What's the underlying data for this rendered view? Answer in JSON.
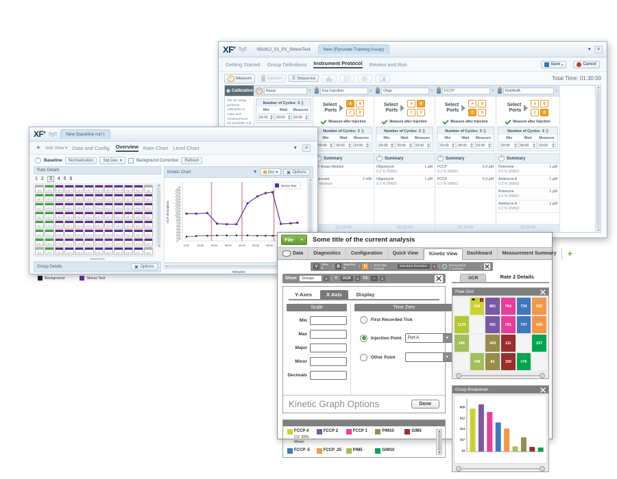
{
  "icons": {
    "close": "✕",
    "filter": "▼",
    "dropdown": "▾",
    "plus": "+",
    "caret": "^",
    "globe": "⊕",
    "hbars": "☰"
  },
  "w1": {
    "logo": "XF",
    "logo_sup": "e",
    "doc_tabs": [
      "091812_01_P1_StressTest",
      "New (Pyruvate Training Assay)"
    ],
    "nav_tabs": [
      "Getting Started",
      "Group Definitions",
      "Instrument Protocol",
      "Review and Run"
    ],
    "save": "Save",
    "cancel": "Cancel",
    "toolbar": {
      "measure": "Measure",
      "injection": "Injection",
      "sequence": "Sequence"
    },
    "total_time": "Total Time:  01:30:00",
    "calibration": {
      "title": "Calibration",
      "desc": "The XF assay performs calibration to make sure measurements are accurate. It is configured in the Instrument Settings.",
      "equilibrate": "Equilibrate"
    },
    "cycles_label": "Number of Cycles:",
    "cycles_value": "3",
    "mix_label": "Mix",
    "wait_label": "Wait",
    "measure_label": "Measure",
    "select_ports_1": "Select",
    "select_ports_2": "Ports",
    "measure_after": "Measure after Injection",
    "summary_label": "Summary",
    "footer_time": "00:18:00",
    "ports": [
      "A",
      "B",
      "C",
      "D"
    ],
    "columns": [
      {
        "name": "Basal",
        "type": "measure",
        "mix": "03:00",
        "wait": "00:00",
        "measure": "03:00",
        "summary": []
      },
      {
        "name": "Exp Injection",
        "type": "injection",
        "port": "A",
        "mix": "03:00",
        "wait": "00:00",
        "measure": "03:00",
        "summary": [
          {
            "n": "XF Assay Medium",
            "v": "",
            "s": "%"
          },
          {
            "n": "Pyruvate",
            "v": "2 mM",
            "s": "% Medium"
          }
        ]
      },
      {
        "name": "Oligo",
        "type": "injection",
        "port": "B",
        "mix": "03:00",
        "wait": "00:00",
        "measure": "03:00",
        "summary": [
          {
            "n": "Oligomycin",
            "v": "1 µM",
            "s": "0.2 % DMSO"
          },
          {
            "n": "Oligomycin",
            "v": "1 µM",
            "s": "0.2 % DMSO"
          }
        ]
      },
      {
        "name": "FCCP",
        "type": "injection",
        "port": "C",
        "mix": "03:00",
        "wait": "00:00",
        "measure": "03:00",
        "summary": [
          {
            "n": "FCCP",
            "v": "0.3 µM",
            "s": "0.2 % DMSO"
          },
          {
            "n": "FCCP",
            "v": "0.3 µM",
            "s": "0.2 % DMSO"
          }
        ]
      },
      {
        "name": "Rot/AntA",
        "type": "injection",
        "port": "D",
        "mix": "03:00",
        "wait": "00:00",
        "measure": "03:00",
        "summary": [
          {
            "n": "Rotenone",
            "v": "1 µM",
            "s": "0.2 % DMSO"
          },
          {
            "n": "Antimycin A",
            "v": "1 µM",
            "s": "0.2 % DMSO"
          },
          {
            "n": "Rotenone",
            "v": "1 µM",
            "s": "0.2 % DMSO"
          },
          {
            "n": "Antimycin A",
            "v": "1 µM",
            "s": "0.2 % DMSO"
          }
        ]
      }
    ]
  },
  "w2": {
    "logo": "XF",
    "logo_sup": "e",
    "doc_tab": "New (baseline run )",
    "add_view": "Add View",
    "nav_tabs": [
      "Data and Config.",
      "Overview",
      "Rate Chart",
      "Level Chart"
    ],
    "toolbar": {
      "baseline": "Baseline",
      "normalization": "Normalization",
      "stddev": "Std Dev.",
      "background": "Background Correction",
      "refresh": "Refresh"
    },
    "rate_details": {
      "title": "Rate Details",
      "pages": [
        "1",
        "2",
        "3",
        "4",
        "5",
        "6"
      ],
      "active_page": "3",
      "green_color": "#3aa53f",
      "purple_color": "#5f2d91",
      "na_color": "#b0b0b0",
      "rows": [
        [
          "N/A",
          "136.1",
          "136.3",
          "136.3",
          "136.2",
          "136.3",
          "136.3",
          "136.2",
          "136.3",
          "136.3",
          "136.1",
          "N/A"
        ],
        [
          "135.2",
          "135.1",
          "134.3",
          "134.3",
          "134.2",
          "134.3",
          "134.3",
          "134.2",
          "134.3",
          "134.3",
          "134.2",
          "134.1"
        ],
        [
          "134.1",
          "134.2",
          "133.3",
          "133.2",
          "133.3",
          "133.3",
          "133.2",
          "133.3",
          "133.2",
          "133.3",
          "133.2",
          "133.1"
        ],
        [
          "133.2",
          "133.1",
          "132.3",
          "132.3",
          "132.2",
          "132.3",
          "132.3",
          "132.2",
          "132.3",
          "132.2",
          "132.3",
          "132.1"
        ],
        [
          "132.1",
          "132.2",
          "131.3",
          "131.2",
          "131.3",
          "131.2",
          "131.3",
          "131.3",
          "131.2",
          "131.3",
          "131.2",
          "131.1"
        ],
        [
          "131.2",
          "131.1",
          "130.3",
          "130.3",
          "130.2",
          "130.3",
          "130.2",
          "130.3",
          "130.3",
          "130.2",
          "130.3",
          "130.1"
        ],
        [
          "130.1",
          "130.2",
          "129.3",
          "129.2",
          "129.3",
          "129.3",
          "129.2",
          "129.3",
          "129.2",
          "129.3",
          "129.2",
          "129.1"
        ],
        [
          "N/A",
          "129.1",
          "128.3",
          "128.3",
          "128.2",
          "128.3",
          "128.3",
          "128.2",
          "128.3",
          "128.3",
          "128.1",
          "N/A"
        ]
      ]
    },
    "kinetic": {
      "title": "Kinetic Chart",
      "dropdown": "Ocr",
      "options": "Options"
    },
    "group_details": {
      "title": "Group Details",
      "options": "Options",
      "legend": [
        {
          "label": "Background",
          "color": "#1a1a1a"
        },
        {
          "label": "Stress Test",
          "color": "#5f2d91"
        }
      ]
    }
  },
  "w3": {
    "file_menu": "File",
    "title": "Some title of the current analysis",
    "tabs": [
      "Data",
      "Diagnostics",
      "Configuration",
      "Quick View",
      "Kinetic View",
      "Dashboard",
      "Measurement Summary"
    ],
    "active_tab": "Kinetic View",
    "view_bar": {
      "v": "V",
      "view": "View",
      "b": "B",
      "baseline": "Baseline",
      "n": "N",
      "error_label": "Error Bar Format",
      "error_value": "Standard Deviation",
      "background": "Background Correction"
    },
    "show_bar": {
      "show_label": "Show:",
      "show_value": "Groups",
      "y_label": "Y:",
      "y_value": "OCR",
      "y2_label": "Y2:",
      "y2_value": "--"
    },
    "options_panel": {
      "tabs": [
        "Y-Axes",
        "X Axis",
        "Display"
      ],
      "active_tab": "X Axis",
      "scale_title": "Scale",
      "scale_fields": [
        "Min",
        "Max",
        "Major",
        "Minor",
        "Decimals"
      ],
      "time_zero_title": "Time Zero",
      "radios": [
        {
          "label": "First Recorded Tick",
          "selected": false,
          "dropdown": null
        },
        {
          "label": "Injection Point",
          "selected": true,
          "dropdown": "Port A"
        },
        {
          "label": "Other Point",
          "selected": false,
          "dropdown": ""
        }
      ],
      "footer_title": "Kinetic Graph Options",
      "done": "Done"
    },
    "legend_items": [
      {
        "label": "FCCP 4",
        "color": "#ccd12e",
        "sub": [
          "CV: 20%",
          "Mean:"
        ]
      },
      {
        "label": "FCCP 2",
        "color": "#7a58a5",
        "sub": []
      },
      {
        "label": "FCCP 1",
        "color": "#e63e9a",
        "sub": []
      },
      {
        "label": "P/M10",
        "color": "#978c4a",
        "sub": []
      },
      {
        "label": "G/M5",
        "color": "#9b2d2d",
        "sub": []
      },
      {
        "label": "FCCP .5",
        "color": "#3f78bf",
        "sub": []
      },
      {
        "label": "FCCP .25",
        "color": "#f79646",
        "sub": []
      },
      {
        "label": "P/M5",
        "color": "#a2bf5a",
        "sub": []
      },
      {
        "label": "G/M10",
        "color": "#00a550",
        "sub": []
      }
    ],
    "right": {
      "ocr_tab": "OCR",
      "details_title": "Rate 2 Details",
      "plate_grid": {
        "title": "Plate Grid",
        "rows": [
          [
            {
              "v": "",
              "c": ""
            },
            {
              "v": "502",
              "c": "#ccd12e",
              "badge": "1",
              "eye": true
            },
            {
              "v": "861",
              "c": "#7a58a5"
            },
            {
              "v": "764",
              "c": "#e63e9a"
            },
            {
              "v": "734",
              "c": "#3f78bf"
            },
            {
              "v": "532",
              "c": "#f79646"
            }
          ],
          [
            {
              "v": "1139",
              "c": "#b4c832"
            },
            {
              "v": "",
              "c": ""
            },
            {
              "v": "991",
              "c": "#7a58a5"
            },
            {
              "v": "791",
              "c": "#e63e9a"
            },
            {
              "v": "747",
              "c": "#3f78bf"
            },
            {
              "v": "665",
              "c": "#f79646"
            }
          ],
          [
            {
              "v": "196",
              "c": "#a2bf5a"
            },
            {
              "v": "",
              "c": ""
            },
            {
              "v": "433",
              "c": "#978c4a"
            },
            {
              "v": "111",
              "c": "#9b2d2d"
            },
            {
              "v": "",
              "c": ""
            },
            {
              "v": "237",
              "c": "#00a550"
            }
          ],
          [
            {
              "v": "",
              "c": ""
            },
            {
              "v": "208",
              "c": "#a2bf5a"
            },
            {
              "v": "81",
              "c": "#978c4a"
            },
            {
              "v": "150",
              "c": "#9b2d2d"
            },
            {
              "v": "176",
              "c": "#00a550"
            },
            {
              "v": "",
              "c": ""
            }
          ]
        ]
      },
      "group_breakdown": {
        "title": "Group Breakdown"
      }
    }
  },
  "chart_data": [
    {
      "type": "line",
      "title": "Kinetic Chart",
      "xlabel": "minutes",
      "ylabel": "OCR description",
      "xlim": [
        -3,
        83
      ],
      "ylim": [
        0,
        190
      ],
      "xticks": [
        0,
        10,
        20,
        30,
        40,
        50,
        60,
        70,
        80
      ],
      "xtick_labels": [
        "0:00",
        "10:00",
        "20:00",
        "30:00",
        "40:00",
        "50:00",
        "60:00",
        "70:00",
        "80:00"
      ],
      "yticks": [
        10,
        20,
        30,
        40,
        50,
        60,
        70,
        80,
        90,
        100,
        110,
        120,
        130,
        140,
        150,
        160,
        170,
        180
      ],
      "ytick_suffix": ".00",
      "x": [
        0,
        7,
        15,
        22,
        29,
        36,
        44,
        51,
        57,
        62,
        68,
        75,
        80
      ],
      "series": [
        {
          "name": "Stress Test",
          "color": "#5f2d91",
          "values": [
            90,
            90,
            92,
            57,
            55,
            55,
            124,
            147,
            158,
            161,
            56,
            58,
            60
          ]
        },
        {
          "name": "Background",
          "color": "#2a2a2a",
          "values": [
            14,
            16,
            17,
            18,
            18,
            18,
            18,
            17,
            17,
            17,
            16,
            16,
            15
          ]
        }
      ],
      "injection_lines": {
        "color": "#d99a9e",
        "x": [
          18,
          40,
          63
        ]
      },
      "legend": "Stress Test",
      "legend_position": "top-right",
      "grid": false
    },
    {
      "type": "bar",
      "title": "Group Breakdown",
      "categories": [
        "FCCP 4",
        "FCCP 2",
        "FCCP 1",
        "FCCP .5",
        "FCCP .25",
        "P/M5",
        "P/M10",
        "G/M5",
        "G/M10"
      ],
      "values": [
        780,
        860,
        720,
        530,
        420,
        95,
        260,
        85,
        75
      ],
      "colors": [
        "#ccd12e",
        "#7a58a5",
        "#e63e9a",
        "#3f78bf",
        "#f79646",
        "#a2bf5a",
        "#978c4a",
        "#9b2d2d",
        "#00a550"
      ],
      "yticks": [
        19,
        217,
        414,
        612,
        809
      ],
      "ylim": [
        0,
        920
      ],
      "xlabel": "",
      "ylabel": "",
      "grid": false
    }
  ]
}
